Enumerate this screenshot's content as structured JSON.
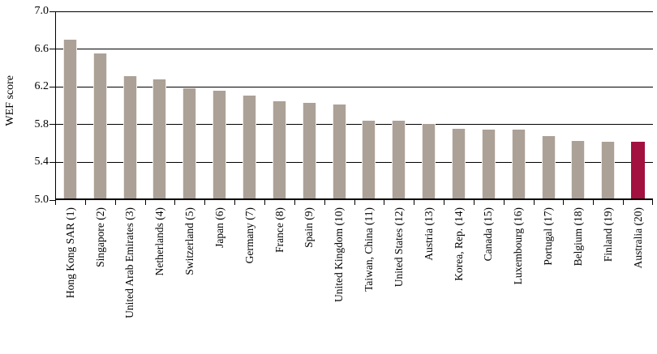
{
  "figure": {
    "background": "#ffffff",
    "axis_color": "#000000",
    "gridline_color": "#000000"
  },
  "chart_data": {
    "type": "bar",
    "title": "",
    "xlabel": "",
    "ylabel": "WEF score",
    "ylim": [
      5.0,
      7.0
    ],
    "yticks": [
      7.0,
      6.6,
      6.2,
      5.8,
      5.4,
      5.0
    ],
    "ytick_labels": [
      "7.0",
      "6.6",
      "6.2",
      "5.8",
      "5.4",
      "5.0"
    ],
    "grid": true,
    "legend": "none",
    "categories": [
      "Hong Kong SAR (1)",
      "Singapore (2)",
      "United Arab Emirates (3)",
      "Netherlands (4)",
      "Switzerland (5)",
      "Japan (6)",
      "Germany (7)",
      "France (8)",
      "Spain (9)",
      "United Kingdom (10)",
      "Taiwan, China (11)",
      "United States (12)",
      "Austria (13)",
      "Korea, Rep. (14)",
      "Canada (15)",
      "Luxembourg (16)",
      "Portugal (17)",
      "Belgium (18)",
      "Finland (19)",
      "Australia (20)"
    ],
    "values": [
      6.68,
      6.54,
      6.3,
      6.26,
      6.17,
      6.14,
      6.09,
      6.03,
      6.01,
      6.0,
      5.82,
      5.82,
      5.79,
      5.74,
      5.73,
      5.73,
      5.66,
      5.61,
      5.6,
      5.6
    ],
    "bar_color": "#aca197",
    "highlight_index": 19,
    "highlight_color": "#a21140"
  }
}
